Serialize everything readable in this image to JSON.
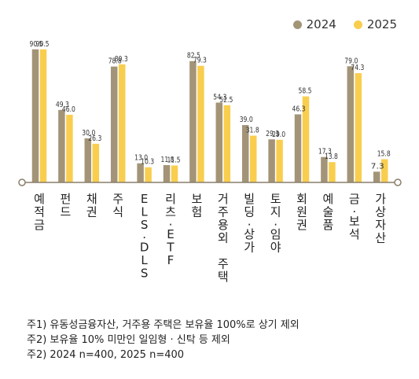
{
  "colors": {
    "s2024": "#A39478",
    "s2025": "#F9CE4E",
    "axis": "#8A7E6A"
  },
  "chart_data": {
    "type": "bar",
    "categories": [
      "예적금",
      "펀드",
      "채권",
      "주식",
      "ELS·DLS",
      "리츠·ETF",
      "보험",
      "거주용외 주택",
      "빌딩·상가",
      "토지·임야",
      "회원권",
      "예술품",
      "금·보석",
      "가상자산"
    ],
    "series": [
      {
        "name": "2024",
        "values": [
          90.5,
          49.3,
          30.0,
          78.8,
          13.0,
          11.8,
          82.5,
          54.3,
          39.0,
          29.3,
          46.3,
          17.3,
          79.0,
          7.3
        ]
      },
      {
        "name": "2025",
        "values": [
          90.5,
          46.0,
          26.3,
          80.3,
          10.3,
          11.5,
          79.3,
          52.5,
          31.8,
          29.0,
          58.5,
          13.8,
          74.3,
          15.8
        ]
      }
    ],
    "value_labels": [
      [
        "90.5",
        "49.3",
        "30.0",
        "78.8",
        "13.0",
        "11.8",
        "82.5",
        "54.3",
        "39.0",
        "29.3",
        "46.3",
        "17.3",
        "79.0",
        "7.3"
      ],
      [
        "90.5",
        "46.0",
        "26.3",
        "80.3",
        "10.3",
        "11.5",
        "79.3",
        "52.5",
        "31.8",
        "29.0",
        "58.5",
        "13.8",
        "74.3",
        "15.8"
      ]
    ],
    "ylim": [
      0,
      100
    ],
    "legend_position": "top-right",
    "grid": false
  },
  "legend": {
    "items": [
      "2024",
      "2025"
    ]
  },
  "footnotes": [
    "주1) 유동성금융자산, 거주용 주택은 보유율 100%로 상기 제외",
    "주2) 보유율 10% 미만인 일임형 · 신탁 등 제외",
    "주2) 2024 n=400, 2025 n=400"
  ]
}
